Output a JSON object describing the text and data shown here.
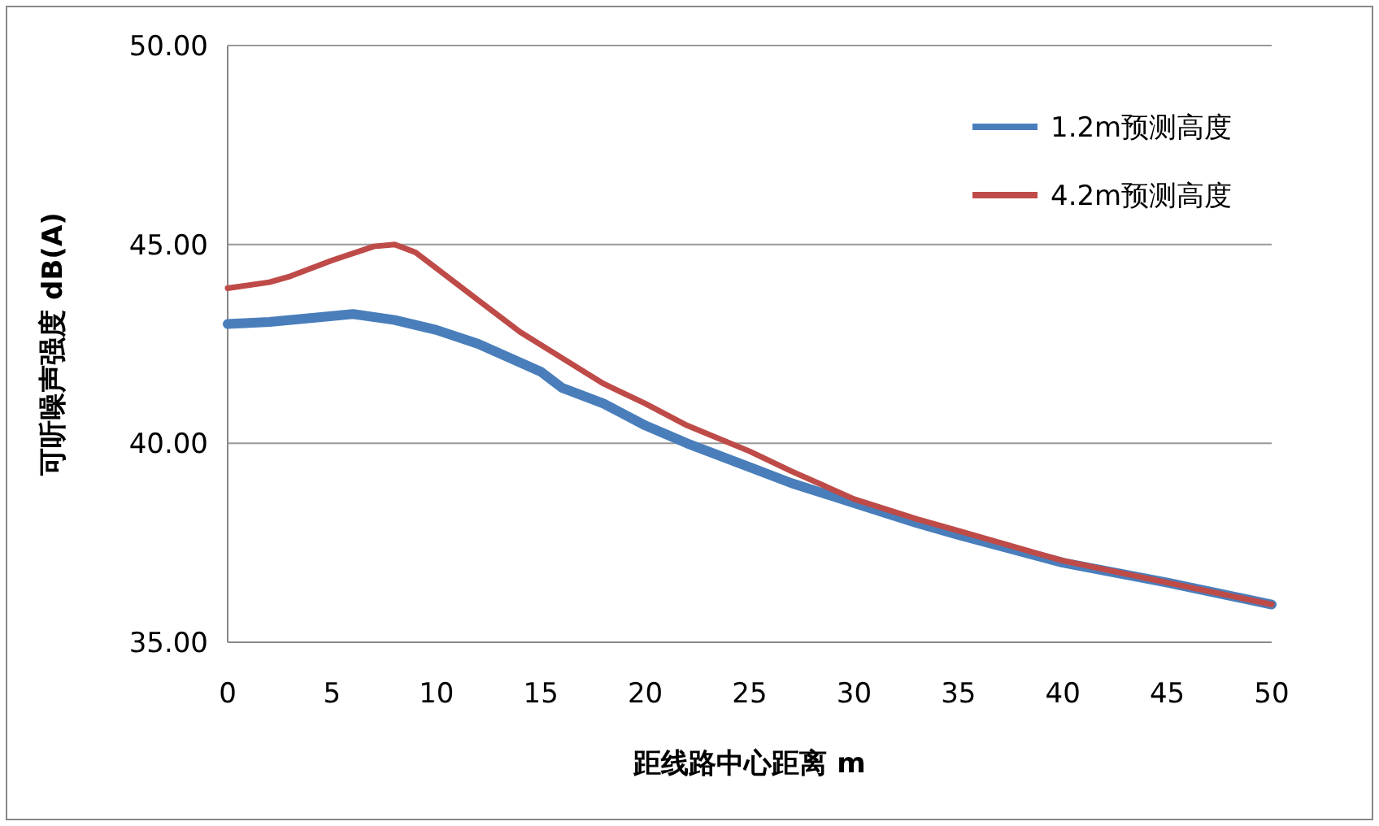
{
  "chart_data": {
    "type": "line",
    "xlabel": "距线路中心距离 m",
    "ylabel": "可听噪声强度 dB(A)",
    "xlim": [
      0,
      50
    ],
    "xticks": [
      0,
      5,
      10,
      15,
      20,
      25,
      30,
      35,
      40,
      45,
      50
    ],
    "ylim": [
      35,
      50
    ],
    "yticks": [
      {
        "value": 35,
        "label": "35.00"
      },
      {
        "value": 40,
        "label": "40.00"
      },
      {
        "value": 45,
        "label": "45.00"
      },
      {
        "value": 50,
        "label": "50.00"
      }
    ],
    "grid": "y",
    "legend": "top right",
    "marker": "none",
    "line_style": "solid",
    "series": [
      {
        "name": "1.2m预测高度",
        "color": "#4a7ebb",
        "x": [
          0,
          2,
          5,
          6,
          8,
          10,
          12,
          15,
          16,
          18,
          20,
          22,
          25,
          27,
          30,
          33,
          35,
          40,
          45,
          50
        ],
        "values": [
          43.0,
          43.05,
          43.2,
          43.25,
          43.1,
          42.85,
          42.5,
          41.8,
          41.4,
          41.0,
          40.45,
          40.0,
          39.4,
          39.0,
          38.5,
          38.0,
          37.7,
          37.0,
          36.5,
          35.95
        ]
      },
      {
        "name": "4.2m预测高度",
        "color": "#be4b48",
        "x": [
          0,
          2,
          3,
          5,
          7,
          8,
          9,
          10,
          12,
          14,
          16,
          18,
          20,
          22,
          25,
          27,
          30,
          33,
          35,
          40,
          45,
          50
        ],
        "values": [
          43.9,
          44.05,
          44.2,
          44.6,
          44.95,
          45.0,
          44.8,
          44.4,
          43.6,
          42.8,
          42.15,
          41.5,
          41.0,
          40.45,
          39.8,
          39.3,
          38.6,
          38.1,
          37.8,
          37.05,
          36.5,
          35.95
        ]
      }
    ]
  }
}
